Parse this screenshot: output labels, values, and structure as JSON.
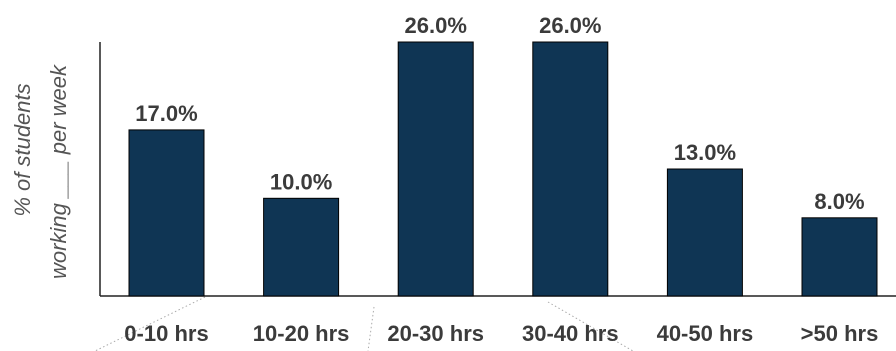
{
  "colors": {
    "bar": "#0f3554",
    "text": "#3b3b3b",
    "axis": "#222222"
  },
  "chart_data": {
    "type": "bar",
    "categories": [
      "0-10 hrs",
      "10-20 hrs",
      "20-30 hrs",
      "30-40 hrs",
      "40-50 hrs",
      ">50 hrs"
    ],
    "values": [
      17.0,
      10.0,
      26.0,
      26.0,
      13.0,
      8.0
    ],
    "value_labels": [
      "17.0%",
      "10.0%",
      "26.0%",
      "26.0%",
      "13.0%",
      "8.0%"
    ],
    "title": "",
    "xlabel": "",
    "ylabel_line1": "% of students",
    "ylabel_line2": "working ___ per week",
    "ylim": [
      0,
      26
    ],
    "grid": false,
    "legend": "none"
  }
}
